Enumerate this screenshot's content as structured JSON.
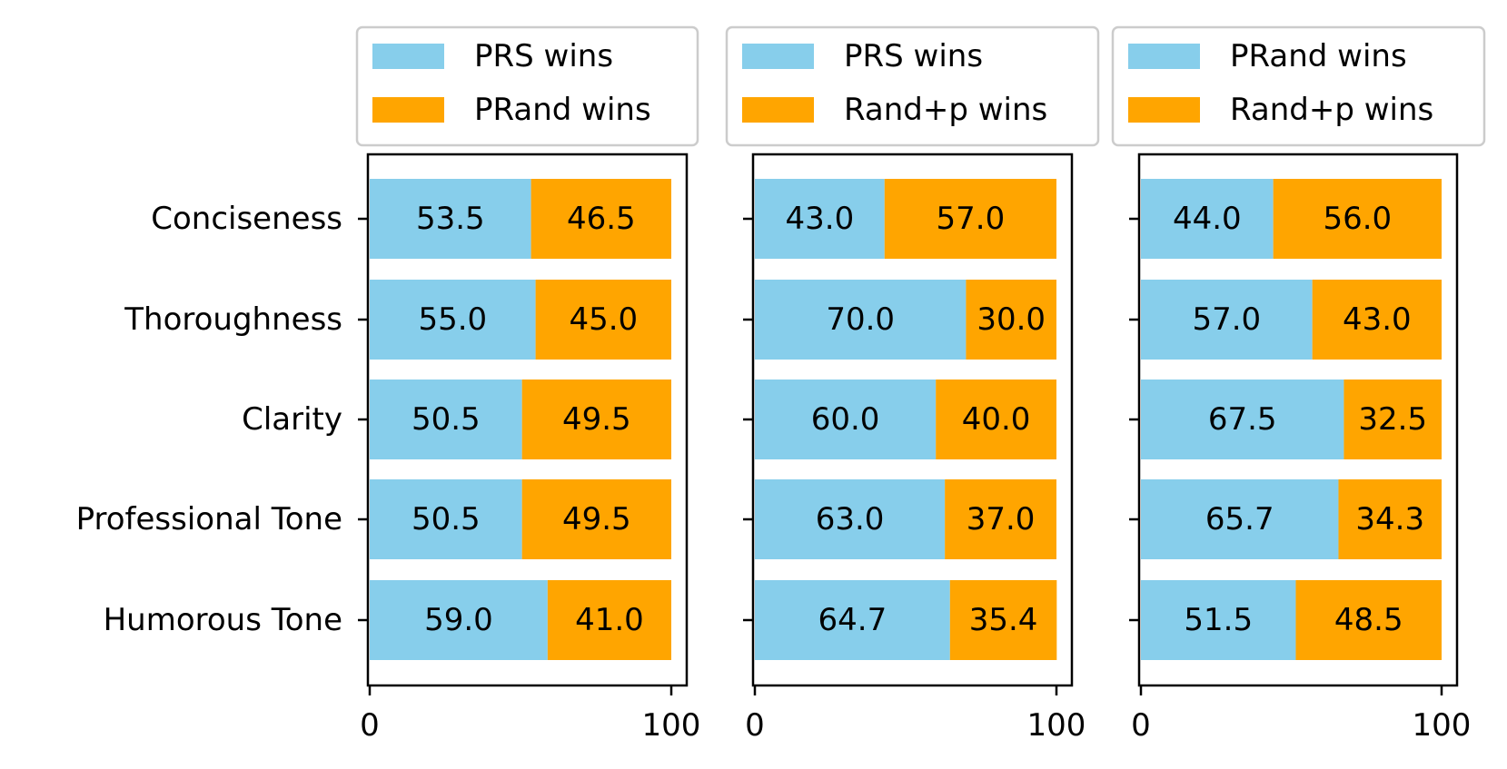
{
  "chart_data": [
    {
      "type": "bar",
      "orientation": "horizontal",
      "stacked": true,
      "categories": [
        "Conciseness",
        "Thoroughness",
        "Clarity",
        "Professional Tone",
        "Humorous Tone"
      ],
      "series": [
        {
          "name": "PRS wins",
          "color": "#87CEEB",
          "values": [
            53.5,
            55.0,
            50.5,
            50.5,
            59.0
          ],
          "labels": [
            "53.5",
            "55.0",
            "50.5",
            "50.5",
            "59.0"
          ]
        },
        {
          "name": "PRand wins",
          "color": "#FFA500",
          "values": [
            46.5,
            45.0,
            49.5,
            49.5,
            41.0
          ],
          "labels": [
            "46.5",
            "45.0",
            "49.5",
            "49.5",
            "41.0"
          ]
        }
      ],
      "xlim": [
        0,
        100
      ],
      "xticks": [
        "0",
        "100"
      ],
      "show_category_labels": true,
      "legend_location": "top"
    },
    {
      "type": "bar",
      "orientation": "horizontal",
      "stacked": true,
      "categories": [
        "Conciseness",
        "Thoroughness",
        "Clarity",
        "Professional Tone",
        "Humorous Tone"
      ],
      "series": [
        {
          "name": "PRS wins",
          "color": "#87CEEB",
          "values": [
            43.0,
            70.0,
            60.0,
            63.0,
            64.7
          ],
          "labels": [
            "43.0",
            "70.0",
            "60.0",
            "63.0",
            "64.7"
          ]
        },
        {
          "name": "Rand+p wins",
          "color": "#FFA500",
          "values": [
            57.0,
            30.0,
            40.0,
            37.0,
            35.4
          ],
          "labels": [
            "57.0",
            "30.0",
            "40.0",
            "37.0",
            "35.4"
          ]
        }
      ],
      "xlim": [
        0,
        100
      ],
      "xticks": [
        "0",
        "100"
      ],
      "show_category_labels": false,
      "legend_location": "top"
    },
    {
      "type": "bar",
      "orientation": "horizontal",
      "stacked": true,
      "categories": [
        "Conciseness",
        "Thoroughness",
        "Clarity",
        "Professional Tone",
        "Humorous Tone"
      ],
      "series": [
        {
          "name": "PRand wins",
          "color": "#87CEEB",
          "values": [
            44.0,
            57.0,
            67.5,
            65.7,
            51.5
          ],
          "labels": [
            "44.0",
            "57.0",
            "67.5",
            "65.7",
            "51.5"
          ]
        },
        {
          "name": "Rand+p wins",
          "color": "#FFA500",
          "values": [
            56.0,
            43.0,
            32.5,
            34.3,
            48.5
          ],
          "labels": [
            "56.0",
            "43.0",
            "32.5",
            "34.3",
            "48.5"
          ]
        }
      ],
      "xlim": [
        0,
        100
      ],
      "xticks": [
        "0",
        "100"
      ],
      "show_category_labels": false,
      "legend_location": "top"
    }
  ]
}
